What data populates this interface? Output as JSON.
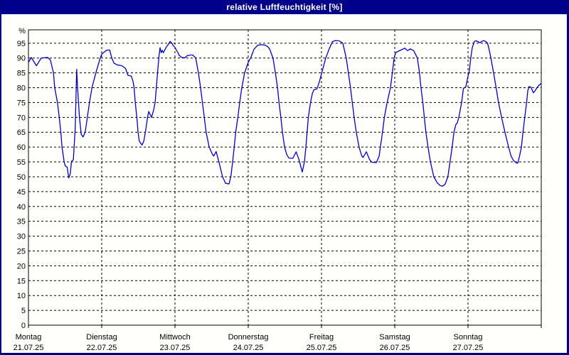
{
  "window": {
    "title": "relative Luftfeuchtigkeit [%]",
    "titlebar_color": "#00008b",
    "frame_color": "#00008b",
    "background_color": "#fffffc"
  },
  "chart_data": {
    "type": "line",
    "title": "relative Luftfeuchtigkeit [%]",
    "ylabel": "%",
    "ylim": [
      0,
      99.5
    ],
    "ytick_step": 5,
    "yticks": [
      0,
      5,
      10,
      15,
      20,
      25,
      30,
      35,
      40,
      45,
      50,
      55,
      60,
      65,
      70,
      75,
      80,
      85,
      90,
      95
    ],
    "grid": {
      "horizontal": "dashed every 5%",
      "vertical": "dashed at each midnight day boundary",
      "color": "#000000"
    },
    "legend_position": "none",
    "axis_color": "#000000",
    "x_axis": {
      "unit": "hours since Monday 00:00, total 168 h (7 days)",
      "days": [
        {
          "name": "Montag",
          "date": "21.07.25"
        },
        {
          "name": "Dienstag",
          "date": "22.07.25"
        },
        {
          "name": "Mittwoch",
          "date": "23.07.25"
        },
        {
          "name": "Donnerstag",
          "date": "24.07.25"
        },
        {
          "name": "Freitag",
          "date": "25.07.25"
        },
        {
          "name": "Samstag",
          "date": "26.07.25"
        },
        {
          "name": "Sonntag",
          "date": "27.07.25"
        }
      ]
    },
    "series": [
      {
        "name": "relative Luftfeuchtigkeit",
        "color": "#0000cd",
        "points": [
          [
            0,
            88.5
          ],
          [
            0.9,
            90.2
          ],
          [
            2.6,
            87.4
          ],
          [
            4.2,
            90.0
          ],
          [
            6.3,
            90.2
          ],
          [
            7.2,
            89.3
          ],
          [
            8.2,
            85
          ],
          [
            8.6,
            80
          ],
          [
            9.5,
            75
          ],
          [
            10.1,
            70
          ],
          [
            10.6,
            65
          ],
          [
            11,
            60
          ],
          [
            11.7,
            55
          ],
          [
            12.1,
            53.6
          ],
          [
            12.7,
            53.2
          ],
          [
            13.2,
            49.6
          ],
          [
            13.7,
            51
          ],
          [
            14.1,
            55.2
          ],
          [
            14.7,
            55.7
          ],
          [
            15.3,
            66
          ],
          [
            15.8,
            86.2
          ],
          [
            16.1,
            80
          ],
          [
            16.7,
            70
          ],
          [
            17.3,
            64.3
          ],
          [
            17.9,
            63.4
          ],
          [
            18.6,
            65
          ],
          [
            19.3,
            70
          ],
          [
            20,
            75
          ],
          [
            20.8,
            80
          ],
          [
            22.1,
            85
          ],
          [
            23.5,
            90
          ],
          [
            24,
            91.3
          ],
          [
            25.6,
            92.6
          ],
          [
            26.6,
            92.7
          ],
          [
            27.3,
            90
          ],
          [
            28,
            88.3
          ],
          [
            29,
            87.7
          ],
          [
            30.6,
            87.4
          ],
          [
            31.8,
            86.5
          ],
          [
            32.6,
            84.2
          ],
          [
            33.7,
            83.9
          ],
          [
            34.3,
            82
          ],
          [
            34.6,
            80
          ],
          [
            35,
            75
          ],
          [
            35.5,
            70
          ],
          [
            35.9,
            65
          ],
          [
            36.3,
            62
          ],
          [
            37.2,
            60.7
          ],
          [
            37.8,
            62
          ],
          [
            38.4,
            65.6
          ],
          [
            39,
            70
          ],
          [
            39.4,
            72
          ],
          [
            40.3,
            70
          ],
          [
            41,
            72.5
          ],
          [
            41.5,
            75
          ],
          [
            41.9,
            80
          ],
          [
            42.3,
            85
          ],
          [
            42.7,
            90
          ],
          [
            43.1,
            93.5
          ],
          [
            43.5,
            91.8
          ],
          [
            43.8,
            92.6
          ],
          [
            44.2,
            91.8
          ],
          [
            45,
            93.4
          ],
          [
            45.8,
            94.6
          ],
          [
            46.4,
            95.6
          ],
          [
            47,
            95
          ],
          [
            47.4,
            94.2
          ],
          [
            48,
            93.6
          ],
          [
            48.5,
            92.6
          ],
          [
            49,
            91.8
          ],
          [
            49.3,
            91
          ],
          [
            50,
            90.3
          ],
          [
            50.7,
            90.1
          ],
          [
            51.3,
            90.1
          ],
          [
            52,
            90.8
          ],
          [
            53,
            91
          ],
          [
            53.8,
            91
          ],
          [
            54.8,
            90
          ],
          [
            55.7,
            85
          ],
          [
            56.4,
            80
          ],
          [
            57,
            75
          ],
          [
            57.6,
            70
          ],
          [
            58.2,
            65
          ],
          [
            59.2,
            60
          ],
          [
            60.3,
            57.5
          ],
          [
            60.7,
            57
          ],
          [
            61.5,
            58.5
          ],
          [
            62.4,
            55
          ],
          [
            63.6,
            50
          ],
          [
            64.6,
            47.8
          ],
          [
            65.7,
            47.6
          ],
          [
            66.3,
            50
          ],
          [
            66.9,
            55
          ],
          [
            67.4,
            60
          ],
          [
            67.9,
            65
          ],
          [
            68.6,
            70
          ],
          [
            69.2,
            75
          ],
          [
            69.9,
            80
          ],
          [
            70.8,
            85
          ],
          [
            72,
            88.5
          ],
          [
            72.9,
            90.3
          ],
          [
            73.9,
            93
          ],
          [
            75.1,
            94.3
          ],
          [
            76.3,
            94.5
          ],
          [
            77.6,
            94.3
          ],
          [
            78.4,
            93.8
          ],
          [
            79,
            93.1
          ],
          [
            80.1,
            90
          ],
          [
            80.9,
            85
          ],
          [
            81.6,
            80
          ],
          [
            82.1,
            75
          ],
          [
            82.7,
            70
          ],
          [
            83.2,
            65
          ],
          [
            83.9,
            60
          ],
          [
            84.6,
            57.5
          ],
          [
            85.3,
            56.3
          ],
          [
            86.6,
            56.2
          ],
          [
            87.7,
            58.4
          ],
          [
            88.6,
            55.9
          ],
          [
            89.7,
            51.6
          ],
          [
            90.4,
            55
          ],
          [
            90.9,
            60
          ],
          [
            91.3,
            65
          ],
          [
            91.7,
            70
          ],
          [
            92.4,
            75
          ],
          [
            93,
            78
          ],
          [
            93.5,
            79.3
          ],
          [
            94.5,
            79.6
          ],
          [
            95.3,
            82
          ],
          [
            96.1,
            85
          ],
          [
            97.4,
            90
          ],
          [
            98.5,
            93
          ],
          [
            99.6,
            95.5
          ],
          [
            100.5,
            95.9
          ],
          [
            101.8,
            95.8
          ],
          [
            103,
            95
          ],
          [
            104.1,
            90
          ],
          [
            104.8,
            85
          ],
          [
            105.5,
            80
          ],
          [
            106.1,
            75
          ],
          [
            106.7,
            70
          ],
          [
            107.4,
            65
          ],
          [
            108.3,
            60
          ],
          [
            109.2,
            57
          ],
          [
            109.6,
            56.5
          ],
          [
            110.7,
            58.4
          ],
          [
            111.7,
            55.9
          ],
          [
            112.5,
            54.9
          ],
          [
            114,
            54.8
          ],
          [
            114.9,
            57
          ],
          [
            115.3,
            60
          ],
          [
            116,
            65
          ],
          [
            116.6,
            70
          ],
          [
            117.5,
            75
          ],
          [
            118.6,
            80
          ],
          [
            119.2,
            85
          ],
          [
            119.8,
            90
          ],
          [
            120,
            90.8
          ],
          [
            120.4,
            91.9
          ],
          [
            121,
            92.2
          ],
          [
            123.3,
            93.3
          ],
          [
            124.2,
            92.5
          ],
          [
            125.1,
            93.1
          ],
          [
            126.2,
            92.5
          ],
          [
            127.4,
            90
          ],
          [
            128.1,
            85
          ],
          [
            128.6,
            80
          ],
          [
            129.2,
            75
          ],
          [
            129.7,
            70
          ],
          [
            130.2,
            65
          ],
          [
            130.9,
            60
          ],
          [
            131.7,
            55
          ],
          [
            132.8,
            50
          ],
          [
            133.9,
            48
          ],
          [
            134.8,
            47.1
          ],
          [
            135.6,
            46.8
          ],
          [
            136.5,
            47.5
          ],
          [
            137.4,
            50
          ],
          [
            138.1,
            55
          ],
          [
            138.8,
            60
          ],
          [
            139.4,
            65
          ],
          [
            140,
            67.5
          ],
          [
            140.5,
            68.2
          ],
          [
            141,
            70
          ],
          [
            141.9,
            75
          ],
          [
            142.5,
            79.8
          ],
          [
            143.3,
            80.3
          ],
          [
            143.9,
            83.5
          ],
          [
            144.4,
            85.5
          ],
          [
            144.9,
            90
          ],
          [
            145.4,
            93.5
          ],
          [
            146.1,
            95.6
          ],
          [
            146.7,
            95.8
          ],
          [
            147.9,
            95.2
          ],
          [
            149.1,
            95.9
          ],
          [
            149.9,
            95.5
          ],
          [
            150.4,
            95
          ],
          [
            150.9,
            93
          ],
          [
            151.5,
            90
          ],
          [
            152.4,
            85
          ],
          [
            153.2,
            80
          ],
          [
            154,
            75
          ],
          [
            155,
            70
          ],
          [
            156.1,
            65
          ],
          [
            157.3,
            60
          ],
          [
            158.1,
            57
          ],
          [
            158.9,
            55.5
          ],
          [
            159.8,
            54.7
          ],
          [
            160.3,
            54.6
          ],
          [
            160.9,
            57
          ],
          [
            161.5,
            60
          ],
          [
            162,
            65
          ],
          [
            162.6,
            70
          ],
          [
            163.2,
            75
          ],
          [
            163.6,
            79
          ],
          [
            164,
            80.4
          ],
          [
            164.6,
            80.2
          ],
          [
            165.4,
            78.3
          ],
          [
            166,
            79
          ],
          [
            166.6,
            80
          ],
          [
            167.2,
            80.8
          ],
          [
            168,
            81.5
          ]
        ]
      }
    ]
  }
}
